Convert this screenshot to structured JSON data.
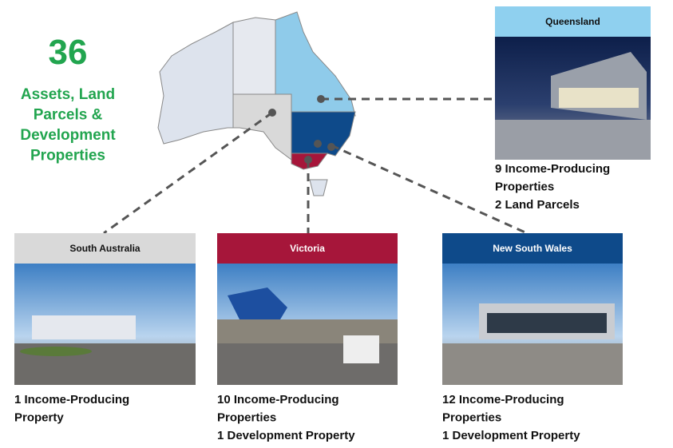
{
  "headline": {
    "number": "36",
    "lines": [
      "Assets, Land",
      "Parcels &",
      "Development",
      "Properties"
    ]
  },
  "regions": [
    {
      "name": "Queensland",
      "lines": [
        "9 Income-Producing",
        "Properties",
        "2 Land Parcels"
      ]
    },
    {
      "name": "South Australia",
      "lines": [
        "1 Income-Producing",
        "Property"
      ]
    },
    {
      "name": "Victoria",
      "lines": [
        "10 Income-Producing",
        "Properties",
        "1 Development Property"
      ]
    },
    {
      "name": "New South Wales",
      "lines": [
        "12 Income-Producing",
        "Properties",
        "1 Development Property"
      ]
    }
  ]
}
